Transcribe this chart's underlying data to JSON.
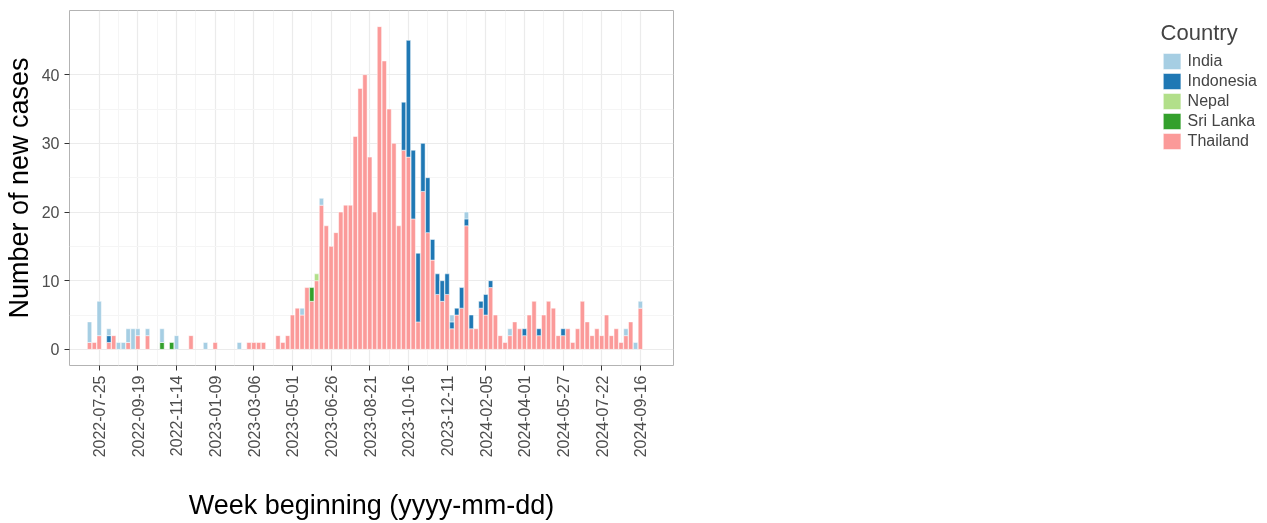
{
  "chart_data": {
    "type": "bar",
    "stacked": true,
    "xlabel": "Week beginning (yyyy-mm-dd)",
    "ylabel": "Number of new cases",
    "legend_title": "Country",
    "legend": "right",
    "grid": true,
    "x": [
      "2022-07-11",
      "2022-07-18",
      "2022-07-25",
      "2022-08-01",
      "2022-08-08",
      "2022-08-15",
      "2022-08-22",
      "2022-08-29",
      "2022-09-05",
      "2022-09-12",
      "2022-09-19",
      "2022-09-26",
      "2022-10-03",
      "2022-10-10",
      "2022-10-17",
      "2022-10-24",
      "2022-10-31",
      "2022-11-07",
      "2022-11-14",
      "2022-11-21",
      "2022-11-28",
      "2022-12-05",
      "2022-12-12",
      "2022-12-19",
      "2022-12-26",
      "2023-01-02",
      "2023-01-09",
      "2023-01-16",
      "2023-01-23",
      "2023-01-30",
      "2023-02-06",
      "2023-02-13",
      "2023-02-20",
      "2023-02-27",
      "2023-03-06",
      "2023-03-13",
      "2023-03-20",
      "2023-03-27",
      "2023-04-03",
      "2023-04-10",
      "2023-04-17",
      "2023-04-24",
      "2023-05-01",
      "2023-05-08",
      "2023-05-15",
      "2023-05-22",
      "2023-05-29",
      "2023-06-05",
      "2023-06-12",
      "2023-06-19",
      "2023-06-26",
      "2023-07-03",
      "2023-07-10",
      "2023-07-17",
      "2023-07-24",
      "2023-07-31",
      "2023-08-07",
      "2023-08-14",
      "2023-08-21",
      "2023-08-28",
      "2023-09-04",
      "2023-09-11",
      "2023-09-18",
      "2023-09-25",
      "2023-10-02",
      "2023-10-09",
      "2023-10-16",
      "2023-10-23",
      "2023-10-30",
      "2023-11-06",
      "2023-11-13",
      "2023-11-20",
      "2023-11-27",
      "2023-12-04",
      "2023-12-11",
      "2023-12-18",
      "2023-12-25",
      "2024-01-01",
      "2024-01-08",
      "2024-01-15",
      "2024-01-22",
      "2024-01-29",
      "2024-02-05",
      "2024-02-12",
      "2024-02-19",
      "2024-02-26",
      "2024-03-04",
      "2024-03-11",
      "2024-03-18",
      "2024-03-25",
      "2024-04-01",
      "2024-04-08",
      "2024-04-15",
      "2024-04-22",
      "2024-04-29",
      "2024-05-06",
      "2024-05-13",
      "2024-05-20",
      "2024-05-27",
      "2024-06-03",
      "2024-06-10",
      "2024-06-17",
      "2024-06-24",
      "2024-07-01",
      "2024-07-08",
      "2024-07-15",
      "2024-07-22",
      "2024-07-29",
      "2024-08-05",
      "2024-08-12",
      "2024-08-19",
      "2024-08-26",
      "2024-09-02",
      "2024-09-09",
      "2024-09-16"
    ],
    "xlim": [
      "2022-06-12",
      "2024-11-03"
    ],
    "xticks": [
      "2022-07-25",
      "2022-09-19",
      "2022-11-14",
      "2023-01-09",
      "2023-03-06",
      "2023-05-01",
      "2023-06-26",
      "2023-08-21",
      "2023-10-16",
      "2023-12-11",
      "2024-02-05",
      "2024-04-01",
      "2024-05-27",
      "2024-07-22",
      "2024-09-16"
    ],
    "ylim": [
      -2.35,
      49.35
    ],
    "yticks": [
      0,
      10,
      20,
      30,
      40
    ],
    "series": [
      {
        "name": "Thailand",
        "color": "#fb9a99",
        "values": [
          1,
          1,
          2,
          null,
          1,
          2,
          null,
          null,
          1,
          null,
          2,
          null,
          2,
          null,
          null,
          null,
          null,
          null,
          null,
          null,
          null,
          2,
          null,
          null,
          null,
          null,
          1,
          null,
          null,
          null,
          null,
          null,
          null,
          1,
          1,
          1,
          1,
          null,
          null,
          2,
          1,
          2,
          5,
          6,
          5,
          9,
          7,
          10,
          21,
          18,
          15,
          17,
          20,
          21,
          21,
          31,
          38,
          40,
          28,
          20,
          47,
          42,
          35,
          30,
          18,
          29,
          28,
          19,
          4,
          23,
          17,
          13,
          8,
          7,
          8,
          3,
          5,
          6,
          18,
          3,
          3,
          6,
          5,
          9,
          5,
          2,
          1,
          2,
          4,
          3,
          2,
          5,
          7,
          2,
          5,
          7,
          6,
          2,
          2,
          3,
          1,
          3,
          7,
          4,
          2,
          3,
          2,
          5,
          2,
          3,
          1,
          2,
          4,
          null,
          6
        ]
      },
      {
        "name": "Sri Lanka",
        "color": "#33a02c",
        "values": [
          null,
          null,
          null,
          null,
          null,
          null,
          null,
          null,
          null,
          null,
          null,
          null,
          null,
          null,
          null,
          1,
          null,
          1,
          null,
          null,
          null,
          null,
          null,
          null,
          null,
          null,
          null,
          null,
          null,
          null,
          null,
          null,
          null,
          null,
          null,
          null,
          null,
          null,
          null,
          null,
          null,
          null,
          null,
          null,
          null,
          null,
          2,
          null,
          null,
          null,
          null,
          null,
          null,
          null,
          null,
          null,
          null,
          null,
          null,
          null,
          null,
          null,
          null,
          null,
          null,
          null,
          null,
          null,
          null,
          null,
          null,
          null,
          null,
          null,
          null,
          null,
          null,
          null,
          null,
          null,
          null,
          null,
          null,
          null,
          null,
          null,
          null,
          null,
          null,
          null,
          null,
          null,
          null,
          null,
          null,
          null,
          null,
          null,
          null,
          null,
          null,
          null,
          null,
          null,
          null,
          null,
          null,
          null,
          null,
          null,
          null,
          null,
          null,
          null,
          null
        ]
      },
      {
        "name": "Nepal",
        "color": "#b2df8a",
        "values": [
          null,
          null,
          null,
          null,
          null,
          null,
          null,
          null,
          null,
          null,
          null,
          null,
          null,
          null,
          null,
          null,
          null,
          null,
          null,
          null,
          null,
          null,
          null,
          null,
          null,
          null,
          null,
          null,
          null,
          null,
          null,
          null,
          null,
          null,
          null,
          null,
          null,
          null,
          null,
          null,
          null,
          null,
          null,
          null,
          null,
          null,
          null,
          1,
          null,
          null,
          null,
          null,
          null,
          null,
          null,
          null,
          null,
          null,
          null,
          null,
          null,
          null,
          null,
          null,
          null,
          null,
          null,
          null,
          null,
          null,
          null,
          null,
          null,
          null,
          null,
          null,
          null,
          null,
          null,
          null,
          null,
          null,
          null,
          null,
          null,
          null,
          null,
          null,
          null,
          null,
          null,
          null,
          null,
          null,
          null,
          null,
          null,
          null,
          null,
          null,
          null,
          null,
          null,
          null,
          null,
          null,
          null,
          null,
          null,
          null,
          null,
          null,
          null,
          null,
          null
        ]
      },
      {
        "name": "Indonesia",
        "color": "#1f78b4",
        "values": [
          null,
          null,
          null,
          null,
          1,
          null,
          null,
          null,
          null,
          null,
          null,
          null,
          null,
          null,
          null,
          null,
          null,
          null,
          null,
          null,
          null,
          null,
          null,
          null,
          null,
          null,
          null,
          null,
          null,
          null,
          null,
          null,
          null,
          null,
          null,
          null,
          null,
          null,
          null,
          null,
          null,
          null,
          null,
          null,
          null,
          null,
          null,
          null,
          null,
          null,
          null,
          null,
          null,
          null,
          null,
          null,
          null,
          null,
          null,
          null,
          null,
          null,
          null,
          null,
          null,
          7,
          17,
          10,
          10,
          7,
          8,
          3,
          3,
          3,
          3,
          1,
          1,
          3,
          1,
          2,
          null,
          1,
          3,
          1,
          null,
          null,
          null,
          null,
          null,
          null,
          1,
          null,
          null,
          1,
          null,
          null,
          null,
          null,
          1,
          null,
          null,
          null,
          null,
          null,
          null,
          null,
          null,
          null,
          null,
          null,
          null,
          null,
          null,
          null,
          null
        ]
      },
      {
        "name": "India",
        "color": "#a6cee3",
        "values": [
          3,
          null,
          5,
          null,
          1,
          null,
          1,
          1,
          2,
          3,
          1,
          null,
          1,
          null,
          null,
          2,
          null,
          null,
          2,
          null,
          null,
          null,
          null,
          null,
          1,
          null,
          null,
          null,
          null,
          null,
          null,
          1,
          null,
          null,
          null,
          null,
          null,
          null,
          null,
          null,
          null,
          null,
          null,
          null,
          1,
          null,
          null,
          null,
          1,
          null,
          null,
          null,
          null,
          null,
          null,
          null,
          null,
          null,
          null,
          null,
          null,
          null,
          null,
          null,
          null,
          null,
          null,
          null,
          null,
          null,
          null,
          null,
          null,
          null,
          null,
          1,
          null,
          null,
          1,
          null,
          null,
          null,
          null,
          null,
          null,
          null,
          null,
          1,
          null,
          null,
          null,
          null,
          null,
          null,
          null,
          null,
          null,
          null,
          null,
          null,
          null,
          null,
          null,
          null,
          null,
          null,
          null,
          null,
          null,
          null,
          null,
          1,
          null,
          1,
          1
        ]
      }
    ]
  }
}
